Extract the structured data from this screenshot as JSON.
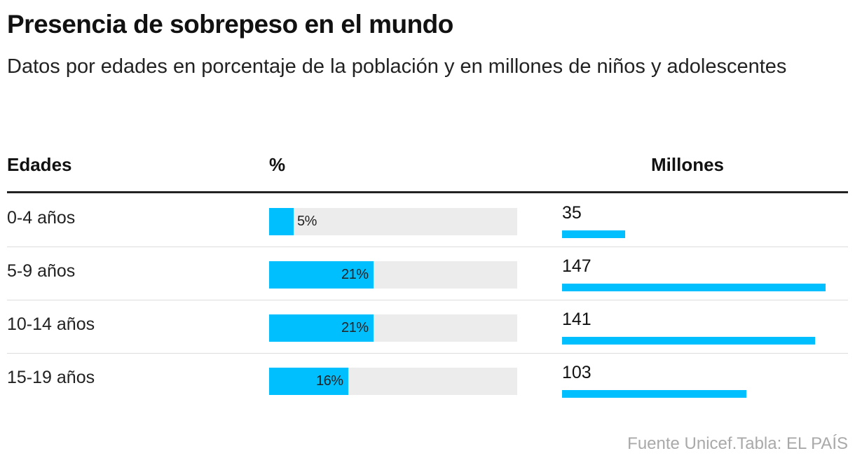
{
  "title": "Presencia de sobrepeso en el mundo",
  "subtitle": "Datos por edades en porcentaje de la población y en millones de niños y adolescentes",
  "headers": {
    "age": "Edades",
    "pct": "%",
    "millions": "Millones"
  },
  "source": "Fuente Unicef.Tabla: EL PAÍS",
  "colors": {
    "bar": "#00bfff",
    "track": "#ececec",
    "rule": "#222222",
    "source": "#a9a9a9"
  },
  "chart_data": {
    "type": "table",
    "title": "Presencia de sobrepeso en el mundo",
    "columns": [
      "Edades",
      "%",
      "Millones"
    ],
    "categories": [
      "0-4 años",
      "5-9 años",
      "10-14 años",
      "15-19 años"
    ],
    "series": [
      {
        "name": "%",
        "values": [
          5,
          21,
          21,
          16
        ],
        "labels": [
          "5%",
          "21%",
          "21%",
          "16%"
        ],
        "max": 50
      },
      {
        "name": "Millones",
        "values": [
          35,
          147,
          141,
          103
        ],
        "labels": [
          "35",
          "147",
          "141",
          "103"
        ],
        "max": 147
      }
    ]
  }
}
